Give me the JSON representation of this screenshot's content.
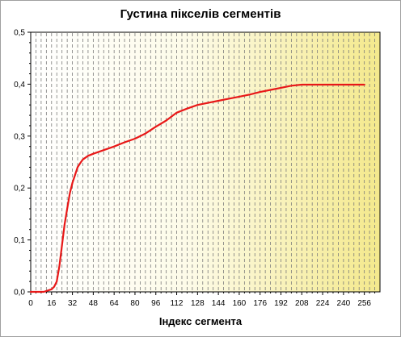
{
  "chart_data": {
    "type": "line",
    "title": "Густина пікселів сегментів",
    "xlabel": "Індекс сегмента",
    "ylabel": "",
    "xlim": [
      0,
      268
    ],
    "ylim": [
      0,
      0.5
    ],
    "x_ticks": [
      0,
      16,
      32,
      48,
      64,
      80,
      96,
      112,
      128,
      144,
      160,
      176,
      192,
      208,
      224,
      240,
      256
    ],
    "y_ticks": [
      0.0,
      0.1,
      0.2,
      0.3,
      0.4,
      0.5
    ],
    "y_tick_labels": [
      "0,0",
      "0,1",
      "0,2",
      "0,3",
      "0,4",
      "0,5"
    ],
    "grid": "vertical dashed",
    "background": "gradient white to yellow",
    "series": [
      {
        "color": "#e81818",
        "x": [
          0,
          10,
          16,
          18,
          20,
          22,
          24,
          26,
          28,
          30,
          32,
          34,
          36,
          38,
          40,
          44,
          48,
          56,
          64,
          72,
          80,
          88,
          96,
          104,
          112,
          120,
          128,
          136,
          144,
          152,
          160,
          168,
          176,
          184,
          192,
          200,
          208,
          216,
          224,
          232,
          240,
          248,
          256
        ],
        "y": [
          0.0,
          0.0,
          0.005,
          0.01,
          0.02,
          0.05,
          0.09,
          0.13,
          0.16,
          0.19,
          0.21,
          0.225,
          0.24,
          0.248,
          0.255,
          0.262,
          0.266,
          0.273,
          0.28,
          0.288,
          0.295,
          0.305,
          0.318,
          0.33,
          0.345,
          0.353,
          0.36,
          0.364,
          0.368,
          0.372,
          0.376,
          0.38,
          0.385,
          0.389,
          0.393,
          0.397,
          0.399,
          0.399,
          0.399,
          0.399,
          0.399,
          0.399,
          0.399
        ]
      }
    ]
  }
}
